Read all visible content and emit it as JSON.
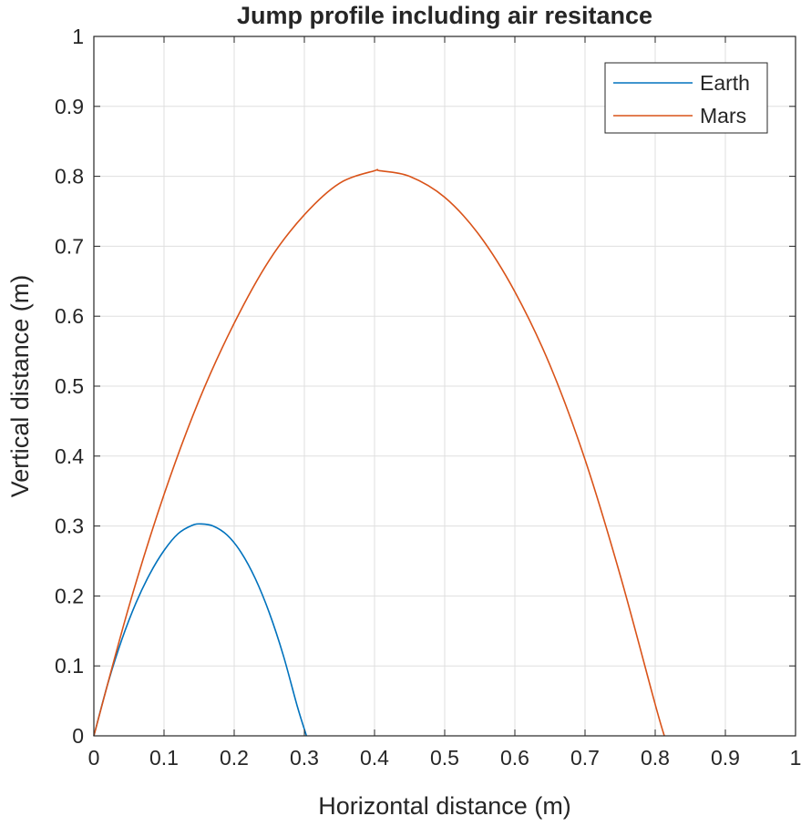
{
  "chart_data": {
    "type": "line",
    "title": "Jump profile including air resitance",
    "xlabel": "Horizontal distance (m)",
    "ylabel": "Vertical distance (m)",
    "xlim": [
      0,
      1
    ],
    "ylim": [
      0,
      1
    ],
    "xticks": [
      "0",
      "0.1",
      "0.2",
      "0.3",
      "0.4",
      "0.5",
      "0.6",
      "0.7",
      "0.8",
      "0.9",
      "1"
    ],
    "yticks": [
      "0",
      "0.1",
      "0.2",
      "0.3",
      "0.4",
      "0.5",
      "0.6",
      "0.7",
      "0.8",
      "0.9",
      "1"
    ],
    "grid": true,
    "legend_position": "top-right",
    "series": [
      {
        "name": "Earth",
        "color": "#0072BD",
        "x": [
          0,
          0.02,
          0.04,
          0.06,
          0.08,
          0.1,
          0.12,
          0.14,
          0.153,
          0.17,
          0.19,
          0.21,
          0.23,
          0.25,
          0.27,
          0.29,
          0.303
        ],
        "y": [
          0,
          0.075,
          0.138,
          0.19,
          0.232,
          0.265,
          0.289,
          0.301,
          0.303,
          0.3,
          0.287,
          0.262,
          0.225,
          0.176,
          0.115,
          0.042,
          0
        ]
      },
      {
        "name": "Mars",
        "color": "#D95319",
        "x": [
          0,
          0.05,
          0.1,
          0.15,
          0.2,
          0.25,
          0.3,
          0.35,
          0.4,
          0.407,
          0.45,
          0.5,
          0.55,
          0.6,
          0.65,
          0.7,
          0.75,
          0.8,
          0.813
        ],
        "y": [
          0,
          0.185,
          0.345,
          0.48,
          0.59,
          0.68,
          0.745,
          0.79,
          0.808,
          0.808,
          0.8,
          0.77,
          0.715,
          0.635,
          0.53,
          0.395,
          0.23,
          0.045,
          0
        ]
      }
    ]
  }
}
